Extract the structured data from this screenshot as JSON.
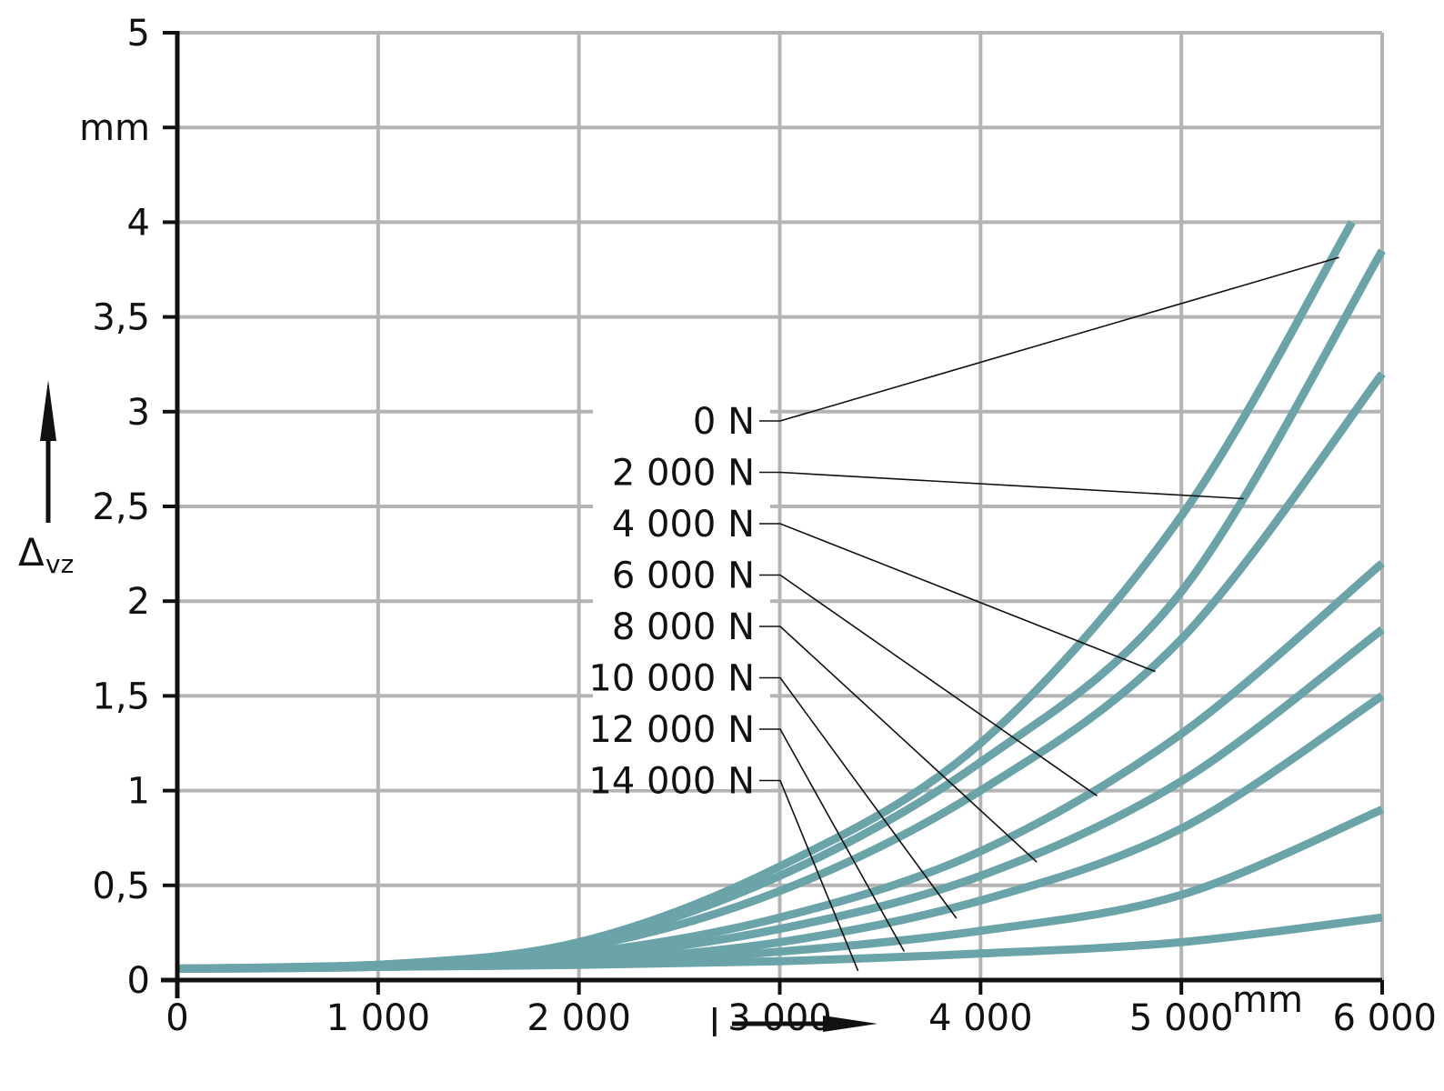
{
  "chart_data": {
    "type": "line",
    "xlabel": "l",
    "ylabel": "Δ",
    "ylabel_sub": "vz",
    "x_unit": "mm",
    "y_unit": "mm",
    "xlim": [
      0,
      6000
    ],
    "ylim": [
      0,
      5
    ],
    "x_ticks": [
      {
        "value": 0,
        "label": "0"
      },
      {
        "value": 1000,
        "label": "1 000"
      },
      {
        "value": 2000,
        "label": "2 000"
      },
      {
        "value": 3000,
        "label": "3 000"
      },
      {
        "value": 4000,
        "label": "4 000"
      },
      {
        "value": 5000,
        "label": "5 000"
      },
      {
        "value": 6000,
        "label": "6 000"
      }
    ],
    "y_ticks": [
      {
        "value": 0,
        "label": "0"
      },
      {
        "value": 0.5,
        "label": "0,5"
      },
      {
        "value": 1,
        "label": "1"
      },
      {
        "value": 1.5,
        "label": "1,5"
      },
      {
        "value": 2,
        "label": "2"
      },
      {
        "value": 2.5,
        "label": "2,5"
      },
      {
        "value": 3,
        "label": "3"
      },
      {
        "value": 3.5,
        "label": "3,5"
      },
      {
        "value": 4,
        "label": "4"
      },
      {
        "value": 4.5,
        "label": "mm"
      },
      {
        "value": 5,
        "label": "5"
      }
    ],
    "grid": true,
    "line_color": "#6aa3a8",
    "x": [
      0,
      1000,
      2000,
      3000,
      4000,
      5000,
      6000
    ],
    "series": [
      {
        "name": "0 N",
        "values": [
          0.06,
          0.08,
          0.2,
          0.6,
          1.25,
          2.45,
          4.0
        ],
        "x_end": 5850
      },
      {
        "name": "2 000 N",
        "values": [
          0.06,
          0.08,
          0.19,
          0.55,
          1.15,
          2.05,
          3.85
        ]
      },
      {
        "name": "4 000 N",
        "values": [
          0.06,
          0.08,
          0.17,
          0.47,
          1.0,
          1.8,
          3.2
        ]
      },
      {
        "name": "6 000 N",
        "values": [
          0.06,
          0.08,
          0.14,
          0.33,
          0.68,
          1.3,
          2.2
        ]
      },
      {
        "name": "8 000 N",
        "values": [
          0.06,
          0.07,
          0.12,
          0.27,
          0.55,
          1.05,
          1.85
        ]
      },
      {
        "name": "10 000 N",
        "values": [
          0.06,
          0.07,
          0.1,
          0.2,
          0.42,
          0.8,
          1.5
        ]
      },
      {
        "name": "12 000 N",
        "values": [
          0.06,
          0.07,
          0.09,
          0.15,
          0.26,
          0.45,
          0.9
        ]
      },
      {
        "name": "14 000 N",
        "values": [
          0.06,
          0.07,
          0.08,
          0.1,
          0.14,
          0.2,
          0.33
        ]
      }
    ]
  }
}
